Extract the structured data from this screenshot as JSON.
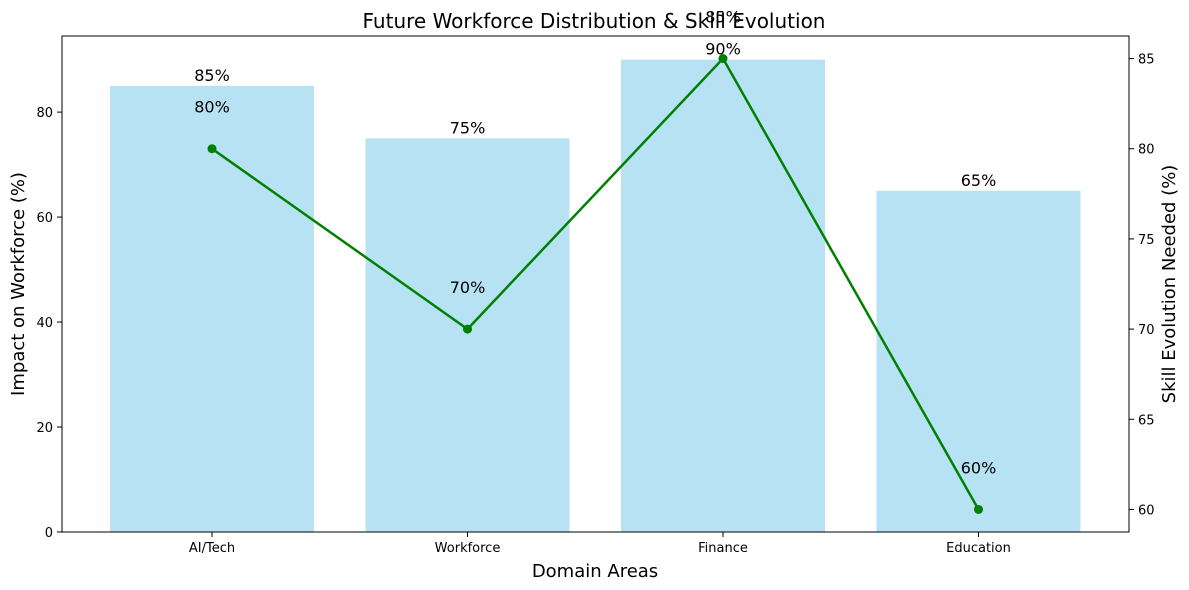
{
  "chart_data": {
    "type": "bar",
    "title": "Future Workforce Distribution & Skill Evolution",
    "xlabel": "Domain Areas",
    "ylabel": "Impact on Workforce (%)",
    "y2label": "Skill Evolution Needed (%)",
    "categories": [
      "AI/Tech",
      "Workforce",
      "Finance",
      "Education"
    ],
    "ylim": [
      0,
      94.5
    ],
    "y2lim": [
      58.75,
      86.25
    ],
    "yticks": [
      0,
      20,
      40,
      60,
      80
    ],
    "y2ticks": [
      60,
      65,
      70,
      75,
      80,
      85
    ],
    "grid": false,
    "series": [
      {
        "kind": "bar",
        "axis": "left",
        "values": [
          85,
          75,
          90,
          65
        ],
        "labels": [
          "85%",
          "75%",
          "90%",
          "65%"
        ],
        "color": "#87CEEB"
      },
      {
        "kind": "line",
        "axis": "right",
        "values": [
          80,
          70,
          85,
          60
        ],
        "labels": [
          "80%",
          "70%",
          "85%",
          "60%"
        ],
        "color": "#008000"
      }
    ]
  }
}
